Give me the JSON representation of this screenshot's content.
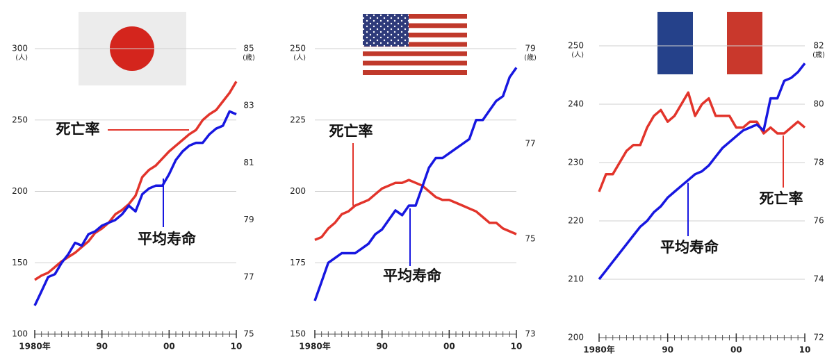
{
  "chart_data": [
    {
      "type": "line",
      "x": [
        1980,
        1981,
        1982,
        1983,
        1984,
        1985,
        1986,
        1987,
        1988,
        1989,
        1990,
        1991,
        1992,
        1993,
        1994,
        1995,
        1996,
        1997,
        1998,
        1999,
        2000,
        2001,
        2002,
        2003,
        2004,
        2005,
        2006,
        2007,
        2008,
        2009,
        2010
      ],
      "xlim": [
        1980,
        2010
      ],
      "xticks": [
        {
          "value": 1980,
          "label": "1980年"
        },
        {
          "value": 1990,
          "label": "90"
        },
        {
          "value": 2000,
          "label": "00"
        },
        {
          "value": 2010,
          "label": "10"
        }
      ],
      "ylim": [
        100,
        300
      ],
      "yticks": [
        100,
        150,
        200,
        250,
        300
      ],
      "y_unit": "(人)",
      "y2lim": [
        75,
        85
      ],
      "y2ticks": [
        75,
        77,
        79,
        81,
        83,
        85
      ],
      "y2_unit": "(歳)",
      "grid": true,
      "series": [
        {
          "name": "死亡率",
          "color": "#e2342b",
          "values": [
            138,
            141,
            143,
            147,
            151,
            154,
            157,
            161,
            165,
            171,
            174,
            178,
            184,
            187,
            191,
            197,
            210,
            215,
            218,
            223,
            228,
            232,
            236,
            240,
            243,
            250,
            254,
            257,
            263,
            269,
            277
          ]
        },
        {
          "name": "平均寿命",
          "color": "#1717e0",
          "axis": "y2",
          "values": [
            76.0,
            76.5,
            77.0,
            77.1,
            77.5,
            77.8,
            78.2,
            78.1,
            78.5,
            78.6,
            78.8,
            78.9,
            79.0,
            79.2,
            79.5,
            79.3,
            79.9,
            80.1,
            80.2,
            80.2,
            80.6,
            81.1,
            81.4,
            81.6,
            81.7,
            81.7,
            82.0,
            82.2,
            82.3,
            82.8,
            82.7
          ]
        }
      ]
    },
    {
      "type": "line",
      "x": [
        1980,
        1981,
        1982,
        1983,
        1984,
        1985,
        1986,
        1987,
        1988,
        1989,
        1990,
        1991,
        1992,
        1993,
        1994,
        1995,
        1996,
        1997,
        1998,
        1999,
        2000,
        2001,
        2002,
        2003,
        2004,
        2005,
        2006,
        2007,
        2008,
        2009,
        2010
      ],
      "xlim": [
        1980,
        2010
      ],
      "xticks": [
        {
          "value": 1980,
          "label": "1980年"
        },
        {
          "value": 1990,
          "label": "90"
        },
        {
          "value": 2000,
          "label": "00"
        },
        {
          "value": 2010,
          "label": "10"
        }
      ],
      "ylim": [
        150,
        250
      ],
      "yticks": [
        150,
        175,
        200,
        225,
        250
      ],
      "y_unit": "(人)",
      "y2lim": [
        73,
        79
      ],
      "y2ticks": [
        73,
        75,
        77,
        79
      ],
      "y2_unit": "(歳)",
      "grid": true,
      "series": [
        {
          "name": "死亡率",
          "color": "#e2342b",
          "values": [
            183,
            184,
            187,
            189,
            192,
            193,
            195,
            196,
            197,
            199,
            201,
            202,
            203,
            203,
            204,
            203,
            202,
            200,
            198,
            197,
            197,
            196,
            195,
            194,
            193,
            191,
            189,
            189,
            187,
            186,
            185
          ]
        },
        {
          "name": "平均寿命",
          "color": "#1717e0",
          "axis": "y2",
          "values": [
            73.7,
            74.1,
            74.5,
            74.6,
            74.7,
            74.7,
            74.7,
            74.8,
            74.9,
            75.1,
            75.2,
            75.4,
            75.6,
            75.5,
            75.7,
            75.7,
            76.1,
            76.5,
            76.7,
            76.7,
            76.8,
            76.9,
            77.0,
            77.1,
            77.5,
            77.5,
            77.7,
            77.9,
            78.0,
            78.4,
            78.6
          ]
        }
      ]
    },
    {
      "type": "line",
      "x": [
        1980,
        1981,
        1982,
        1983,
        1984,
        1985,
        1986,
        1987,
        1988,
        1989,
        1990,
        1991,
        1992,
        1993,
        1994,
        1995,
        1996,
        1997,
        1998,
        1999,
        2000,
        2001,
        2002,
        2003,
        2004,
        2005,
        2006,
        2007,
        2008,
        2009,
        2010
      ],
      "xlim": [
        1980,
        2010
      ],
      "xticks": [
        {
          "value": 1980,
          "label": "1980年"
        },
        {
          "value": 1990,
          "label": "90"
        },
        {
          "value": 2000,
          "label": "00"
        },
        {
          "value": 2010,
          "label": "10"
        }
      ],
      "ylim": [
        200,
        250
      ],
      "yticks": [
        200,
        210,
        220,
        230,
        240,
        250
      ],
      "y_unit": "(人)",
      "y2lim": [
        72,
        82
      ],
      "y2ticks": [
        72,
        74,
        76,
        78,
        80,
        82
      ],
      "y2_unit": "(歳)",
      "grid": true,
      "series": [
        {
          "name": "死亡率",
          "color": "#e2342b",
          "values": [
            225,
            228,
            228,
            230,
            232,
            233,
            233,
            236,
            238,
            239,
            237,
            238,
            240,
            242,
            238,
            240,
            241,
            238,
            238,
            238,
            236,
            236,
            237,
            237,
            235,
            236,
            235,
            235,
            236,
            237,
            236
          ]
        },
        {
          "name": "平均寿命",
          "color": "#1717e0",
          "axis": "y2",
          "values": [
            74.0,
            74.3,
            74.6,
            74.9,
            75.2,
            75.5,
            75.8,
            76.0,
            76.3,
            76.5,
            76.8,
            77.0,
            77.2,
            77.4,
            77.6,
            77.7,
            77.9,
            78.2,
            78.5,
            78.7,
            78.9,
            79.1,
            79.2,
            79.3,
            79.1,
            80.2,
            80.2,
            80.8,
            80.9,
            81.1,
            81.4
          ]
        }
      ]
    }
  ]
}
